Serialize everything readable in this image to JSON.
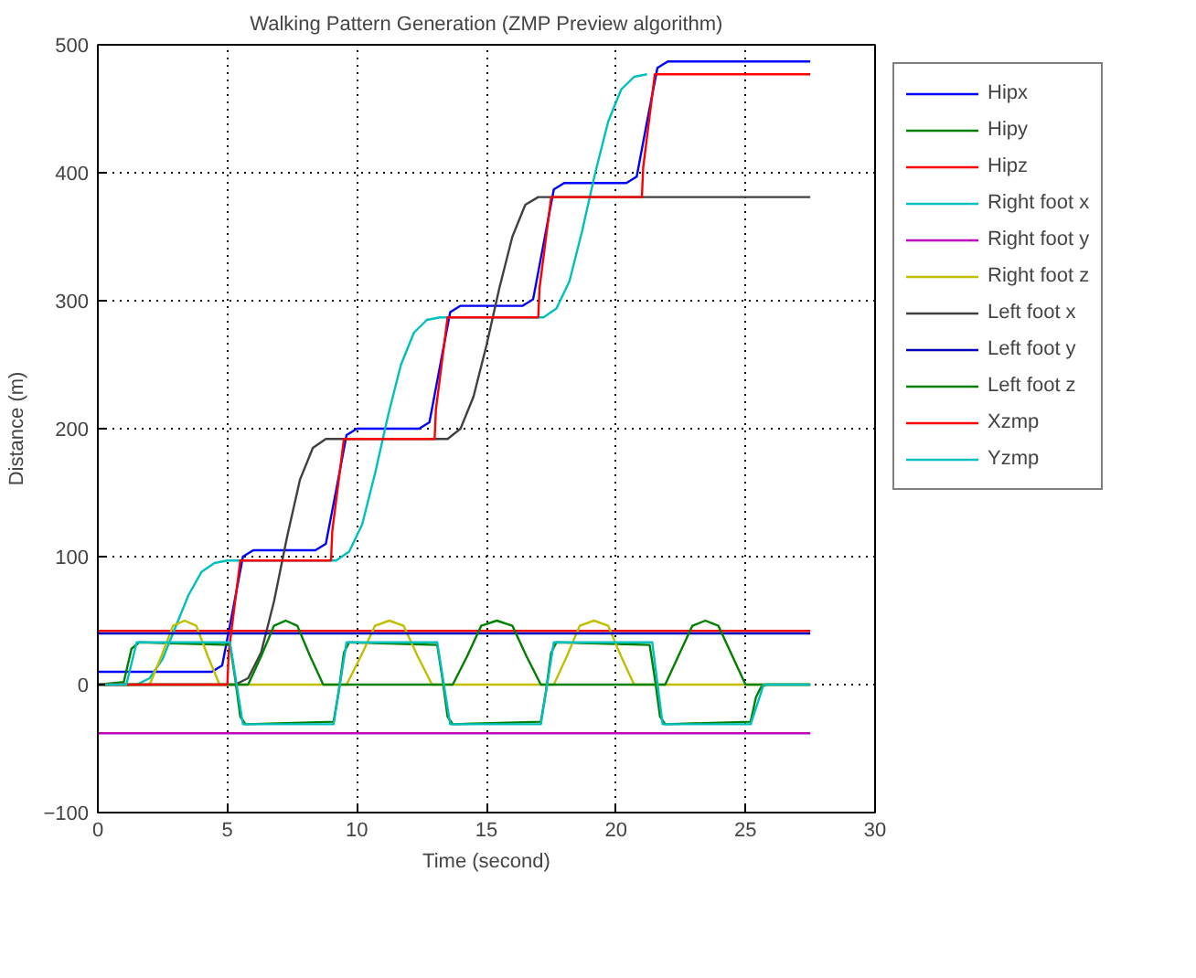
{
  "chart_data": {
    "type": "line",
    "title": "Walking Pattern Generation (ZMP Preview algorithm)",
    "xlabel": "Time (second)",
    "ylabel": "Distance (m)",
    "xlim": [
      0,
      30
    ],
    "ylim": [
      -100,
      500
    ],
    "xticks": [
      0,
      5,
      10,
      15,
      20,
      25,
      30
    ],
    "yticks": [
      -100,
      0,
      100,
      200,
      300,
      400,
      500
    ],
    "grid": true,
    "legend": "right",
    "line_style": "solid",
    "series": [
      {
        "name": "Hipx",
        "color": "#0000ff",
        "x": [
          0,
          4.4,
          4.8,
          5.2,
          5.6,
          6.0,
          8.4,
          8.8,
          9.2,
          9.6,
          10.0,
          12.4,
          12.8,
          13.2,
          13.6,
          14.0,
          16.4,
          16.8,
          17.2,
          17.6,
          18.0,
          20.4,
          20.8,
          21.2,
          21.6,
          22.0,
          27.5
        ],
        "values": [
          10,
          10,
          15,
          57,
          100,
          105,
          105,
          110,
          152,
          195,
          200,
          200,
          205,
          248,
          291,
          296,
          296,
          301,
          344,
          387,
          392,
          392,
          397,
          440,
          482,
          487,
          487
        ]
      },
      {
        "name": "Hipy",
        "color": "#008000",
        "x": [
          0,
          1.0,
          1.3,
          1.6,
          5.1,
          5.3,
          5.5,
          5.7,
          9.1,
          9.3,
          9.5,
          9.7,
          13.1,
          13.3,
          13.5,
          13.7,
          17.1,
          17.3,
          17.5,
          17.7,
          21.3,
          21.5,
          21.7,
          21.9,
          25.2,
          25.4,
          25.6,
          25.8,
          27.5
        ],
        "values": [
          0,
          2,
          28,
          33,
          31,
          5,
          -25,
          -31,
          -29,
          -5,
          25,
          33,
          31,
          5,
          -25,
          -31,
          -29,
          -5,
          25,
          33,
          31,
          5,
          -25,
          -31,
          -29,
          -10,
          -2,
          0,
          0
        ]
      },
      {
        "name": "Hipz",
        "color": "#ff0000",
        "x": [
          0,
          27.5
        ],
        "values": [
          42,
          42
        ]
      },
      {
        "name": "Right foot x",
        "color": "#00bfbf",
        "x": [
          0,
          1.5,
          2.0,
          2.5,
          3.0,
          3.5,
          4.0,
          4.5,
          5.0,
          9.2,
          9.7,
          10.2,
          10.7,
          11.2,
          11.7,
          12.2,
          12.7,
          13.2,
          17.2,
          17.7,
          18.2,
          18.7,
          19.2,
          19.7,
          20.2,
          20.7,
          21.2
        ],
        "values": [
          0,
          0,
          5,
          20,
          45,
          70,
          88,
          95,
          97,
          97,
          104,
          125,
          165,
          210,
          250,
          275,
          285,
          287,
          287,
          294,
          315,
          355,
          400,
          440,
          465,
          475,
          477
        ]
      },
      {
        "name": "Right foot y",
        "color": "#bf00bf",
        "x": [
          0,
          27.5
        ],
        "values": [
          -38,
          -38
        ]
      },
      {
        "name": "Right foot z",
        "color": "#bfbf00",
        "x": [
          0,
          2,
          2.45,
          2.9,
          3.35,
          3.8,
          4.25,
          4.7,
          9.6,
          10.15,
          10.7,
          11.25,
          11.8,
          12.35,
          12.9,
          17.6,
          18.1,
          18.6,
          19.15,
          19.7,
          20.2,
          20.7,
          27.5
        ],
        "values": [
          0,
          0,
          22,
          46,
          50,
          46,
          22,
          0,
          0,
          22,
          46,
          50,
          46,
          22,
          0,
          0,
          22,
          46,
          50,
          46,
          22,
          0,
          0
        ]
      },
      {
        "name": "Left foot x",
        "color": "#404040",
        "x": [
          0,
          5.3,
          5.8,
          6.3,
          6.8,
          7.3,
          7.8,
          8.3,
          8.8,
          13.5,
          14.0,
          14.5,
          15.0,
          15.5,
          16.0,
          16.5,
          17.0,
          27.5
        ],
        "values": [
          0,
          0,
          5,
          25,
          65,
          115,
          160,
          185,
          192,
          192,
          200,
          225,
          265,
          310,
          350,
          375,
          381,
          381
        ]
      },
      {
        "name": "Left foot y",
        "color": "#0000bf",
        "x": [
          0,
          27.5
        ],
        "values": [
          40,
          40
        ]
      },
      {
        "name": "Left foot z",
        "color": "#008000",
        "x": [
          0,
          5.8,
          6.3,
          6.8,
          7.25,
          7.7,
          8.2,
          8.7,
          13.7,
          14.25,
          14.8,
          15.4,
          16.0,
          16.55,
          17.1,
          21.9,
          22.4,
          22.95,
          23.45,
          23.95,
          24.5,
          25.0,
          27.5
        ],
        "values": [
          0,
          0,
          22,
          46,
          50,
          46,
          22,
          0,
          0,
          22,
          46,
          50,
          46,
          22,
          0,
          0,
          22,
          46,
          50,
          46,
          22,
          0,
          0
        ]
      },
      {
        "name": "Xzmp",
        "color": "#ff0000",
        "x": [
          0,
          5.0,
          5.05,
          5.5,
          9.0,
          9.05,
          9.5,
          13.0,
          13.05,
          13.5,
          17.0,
          17.05,
          17.5,
          21.0,
          21.05,
          21.5,
          27.5
        ],
        "values": [
          0,
          0,
          25,
          97,
          97,
          120,
          192,
          192,
          215,
          287,
          287,
          310,
          381,
          381,
          404,
          477,
          477
        ]
      },
      {
        "name": "Yzmp",
        "color": "#00bfbf",
        "x": [
          0,
          1.1,
          1.5,
          5.1,
          5.6,
          9.1,
          9.6,
          13.1,
          13.6,
          17.1,
          17.6,
          21.4,
          21.8,
          25.2,
          25.7,
          27.5
        ],
        "values": [
          0,
          0,
          33,
          33,
          -31,
          -31,
          33,
          33,
          -31,
          -31,
          33,
          33,
          -31,
          -31,
          0,
          0
        ]
      }
    ]
  }
}
